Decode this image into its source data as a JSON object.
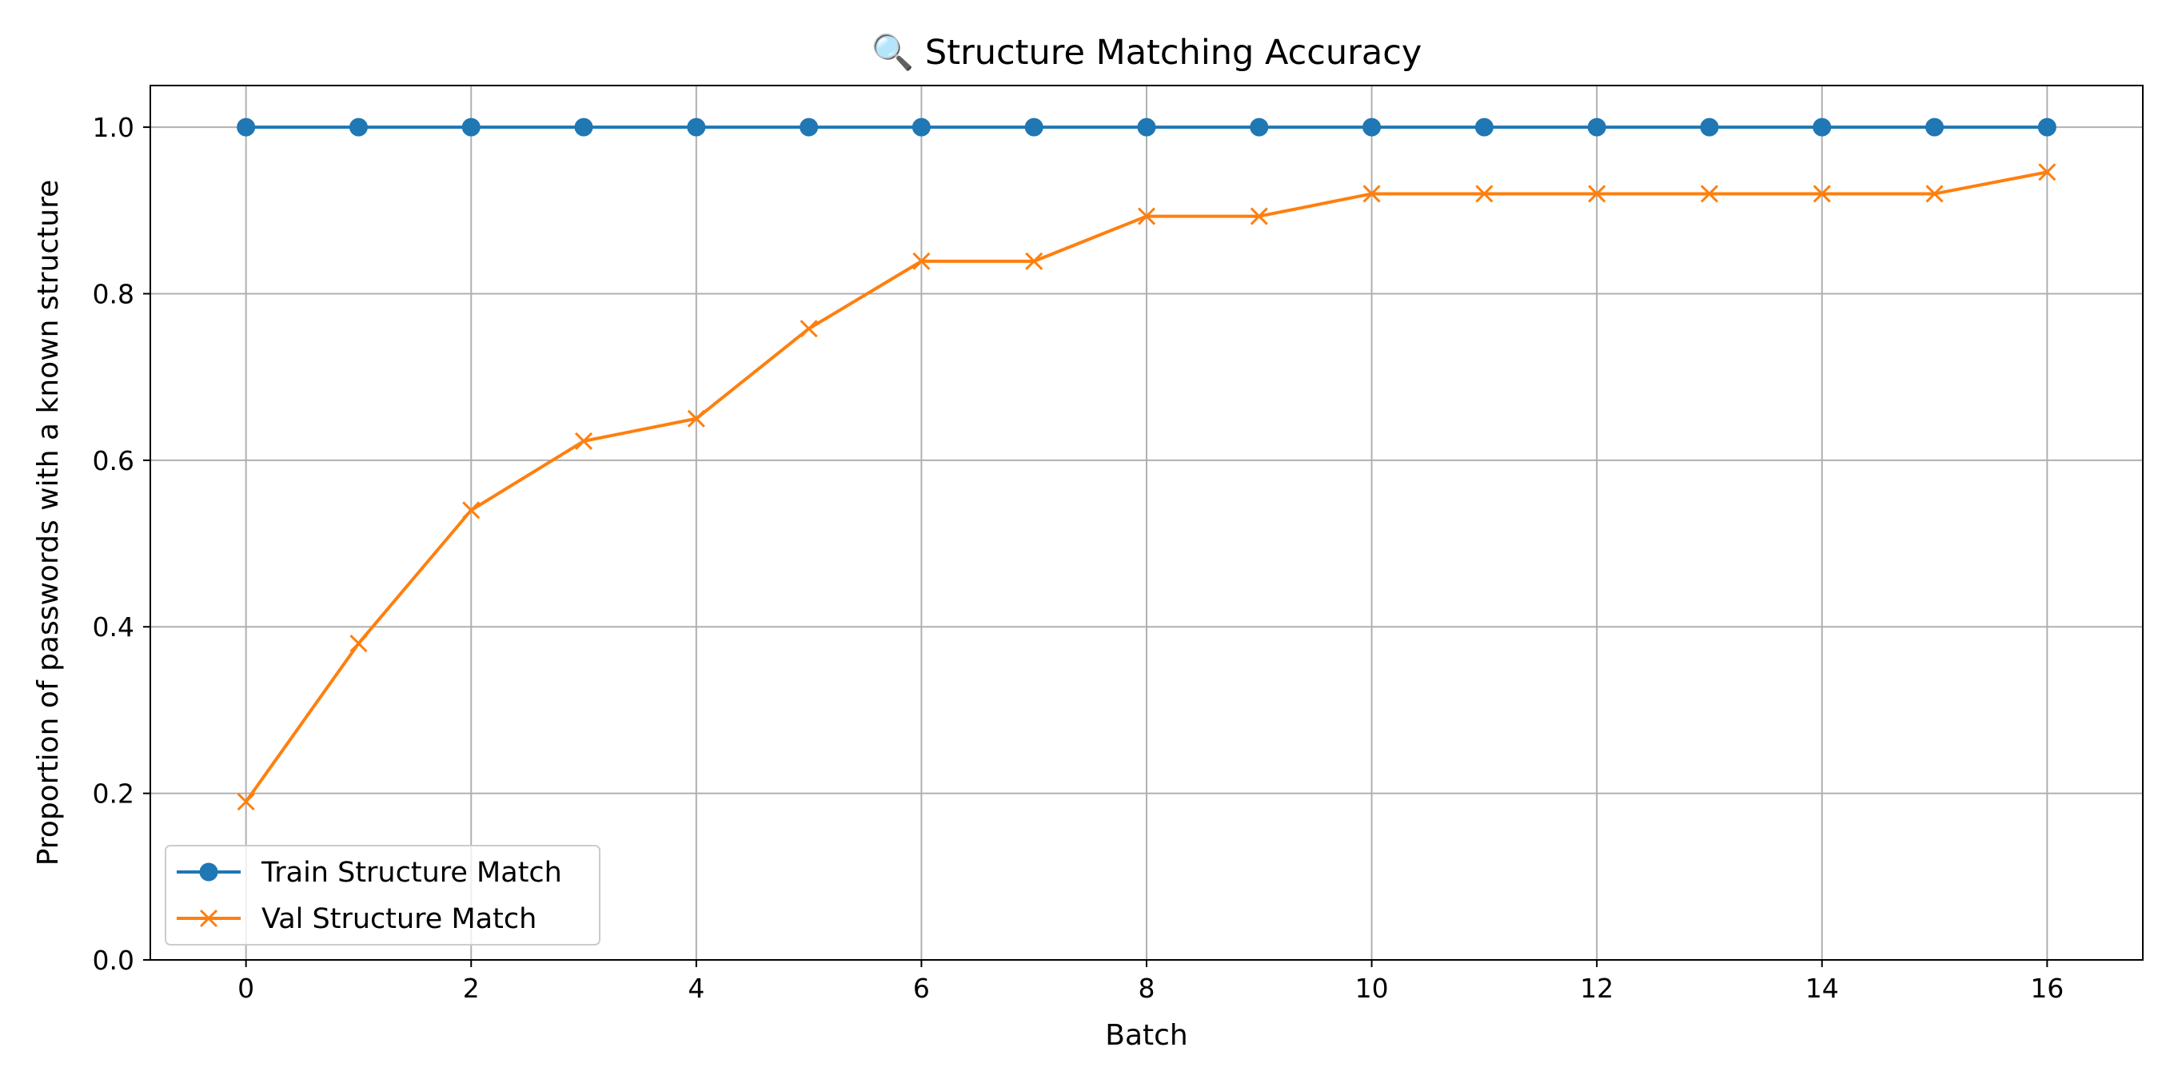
{
  "chart_data": {
    "type": "line",
    "title": "🔍 Structure Matching Accuracy",
    "xlabel": "Batch",
    "ylabel": "Proportion of passwords with a known structure",
    "x": [
      0,
      1,
      2,
      3,
      4,
      5,
      6,
      7,
      8,
      9,
      10,
      11,
      12,
      13,
      14,
      15,
      16
    ],
    "xlim": [
      -0.85,
      16.85
    ],
    "ylim": [
      0.0,
      1.05
    ],
    "xticks": [
      0,
      2,
      4,
      6,
      8,
      10,
      12,
      14,
      16
    ],
    "yticks": [
      0.0,
      0.2,
      0.4,
      0.6,
      0.8,
      1.0
    ],
    "xtick_labels": [
      "0",
      "2",
      "4",
      "6",
      "8",
      "10",
      "12",
      "14",
      "16"
    ],
    "ytick_labels": [
      "0.0",
      "0.2",
      "0.4",
      "0.6",
      "0.8",
      "1.0"
    ],
    "grid": true,
    "legend_position": "lower-left",
    "series": [
      {
        "name": "Train Structure Match",
        "marker": "circle",
        "color": "#1f77b4",
        "values": [
          1.0,
          1.0,
          1.0,
          1.0,
          1.0,
          1.0,
          1.0,
          1.0,
          1.0,
          1.0,
          1.0,
          1.0,
          1.0,
          1.0,
          1.0,
          1.0,
          1.0
        ]
      },
      {
        "name": "Val Structure Match",
        "marker": "x",
        "color": "#ff7f0e",
        "values": [
          0.19,
          0.38,
          0.54,
          0.623,
          0.65,
          0.758,
          0.839,
          0.839,
          0.893,
          0.893,
          0.92,
          0.92,
          0.92,
          0.92,
          0.92,
          0.92,
          0.946
        ]
      }
    ]
  }
}
